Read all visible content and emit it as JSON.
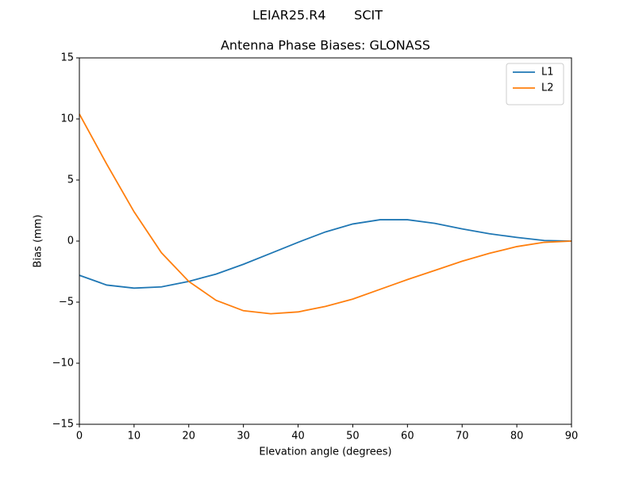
{
  "chart_data": {
    "type": "line",
    "suptitle": "LEIAR25.R4       SCIT",
    "title": "Antenna Phase Biases: GLONASS",
    "x_label": "Elevation angle (degrees)",
    "y_label": "Bias (mm)",
    "x": [
      0,
      5,
      10,
      15,
      20,
      25,
      30,
      35,
      40,
      45,
      50,
      55,
      60,
      65,
      70,
      75,
      80,
      85,
      90
    ],
    "series": [
      {
        "name": "L1",
        "color": "#1f77b4",
        "values": [
          -2.8,
          -3.6,
          -3.85,
          -3.75,
          -3.3,
          -2.7,
          -1.9,
          -1.0,
          -0.1,
          0.75,
          1.4,
          1.75,
          1.75,
          1.45,
          1.0,
          0.6,
          0.3,
          0.05,
          0
        ]
      },
      {
        "name": "L2",
        "color": "#ff7f0e",
        "values": [
          10.4,
          6.3,
          2.4,
          -0.95,
          -3.3,
          -4.85,
          -5.7,
          -5.95,
          -5.8,
          -5.35,
          -4.75,
          -3.95,
          -3.15,
          -2.4,
          -1.65,
          -1.0,
          -0.45,
          -0.1,
          0
        ]
      }
    ],
    "xlim": [
      0,
      90
    ],
    "xticks": [
      0,
      10,
      20,
      30,
      40,
      50,
      60,
      70,
      80,
      90
    ],
    "ylim": [
      -15,
      15
    ],
    "yticks": [
      {
        "value": -15,
        "label": "−15"
      },
      {
        "value": -10,
        "label": "−10"
      },
      {
        "value": -5,
        "label": "−5"
      },
      0,
      5,
      10,
      15
    ],
    "legend": "upper right",
    "grid": false
  }
}
